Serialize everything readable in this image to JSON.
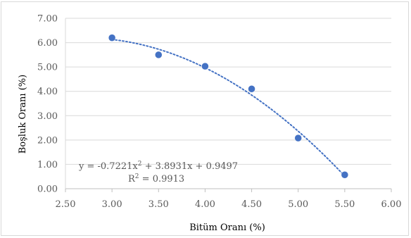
{
  "chart_data": {
    "type": "scatter",
    "title": "",
    "xlabel": "Bitüm Oranı (%)",
    "ylabel": "Boşluk Oranı (%)",
    "xlim": [
      2.5,
      6.0
    ],
    "ylim": [
      0,
      7.0
    ],
    "x_ticks": [
      "2.50",
      "3.00",
      "3.50",
      "4.00",
      "4.50",
      "5.00",
      "5.50",
      "6.00"
    ],
    "y_ticks": [
      "0.00",
      "1.00",
      "2.00",
      "3.00",
      "4.00",
      "5.00",
      "6.00",
      "7.00"
    ],
    "grid": "horizontal",
    "legend": "none",
    "series": [
      {
        "x": [
          3.0,
          3.5,
          4.0,
          4.5,
          5.0,
          5.5
        ],
        "y": [
          6.2,
          5.5,
          5.03,
          4.1,
          2.08,
          0.57
        ],
        "color": "#4472c4"
      }
    ],
    "trendline": {
      "type": "polynomial",
      "order": 2,
      "coefficients": [
        -0.7221,
        3.8931,
        0.9497
      ],
      "color": "#4472c4",
      "style": "dotted",
      "equation_parts": {
        "prefix": "y = -0.7221x",
        "exp": "2",
        "suffix": " + 3.8931x + 0.9497"
      },
      "r2_parts": {
        "prefix": "R",
        "exp": "2",
        "suffix": " = 0.9913"
      }
    }
  }
}
